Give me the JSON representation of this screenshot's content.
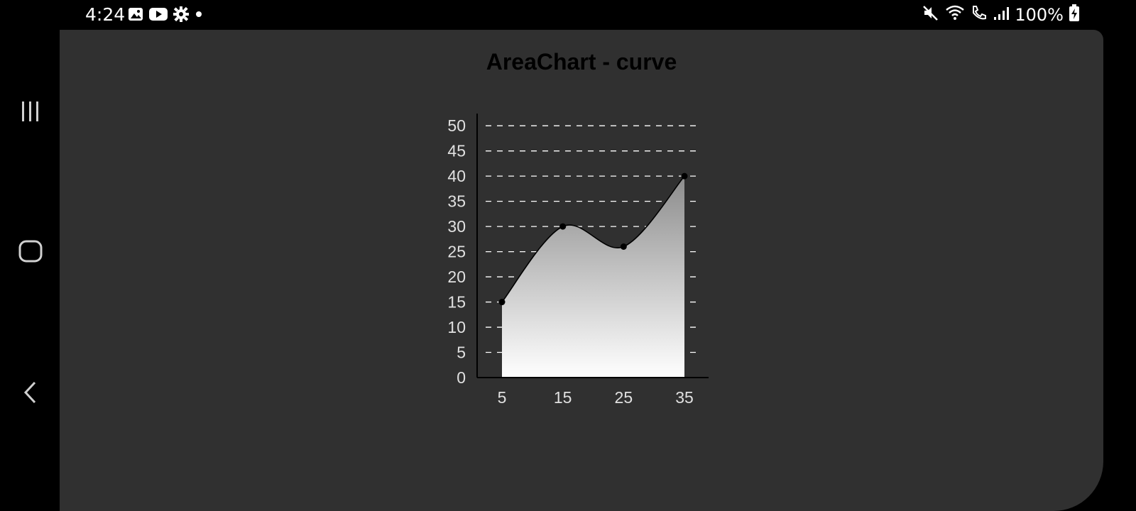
{
  "status_bar": {
    "time": "4:24",
    "battery": "100%",
    "left_icons": [
      "image-icon",
      "youtube-icon",
      "settings-icon",
      "dot-icon"
    ],
    "right_icons": [
      "mute-icon",
      "wifi-icon",
      "wifi-calling-icon",
      "signal-icon",
      "battery-charging-icon"
    ]
  },
  "nav_bar": {
    "buttons": [
      "recents-icon",
      "home-icon",
      "back-icon"
    ]
  },
  "colors": {
    "background": "#303030",
    "area_top": "#8c8c8c",
    "area_bottom": "#ffffff",
    "line": "#000000",
    "tick_text": "#e0e0e0",
    "title": "#000000"
  },
  "chart_data": {
    "type": "area",
    "title": "AreaChart - curve",
    "curve": "smooth",
    "x": [
      5,
      15,
      25,
      35
    ],
    "values": [
      15,
      30,
      26,
      40
    ],
    "xticks": [
      "5",
      "15",
      "25",
      "35"
    ],
    "yticks": [
      "0",
      "5",
      "10",
      "15",
      "20",
      "25",
      "30",
      "35",
      "40",
      "45",
      "50"
    ],
    "ylim": [
      0,
      52
    ],
    "grid": "horizontal dashed",
    "xlabel": "",
    "ylabel": ""
  }
}
